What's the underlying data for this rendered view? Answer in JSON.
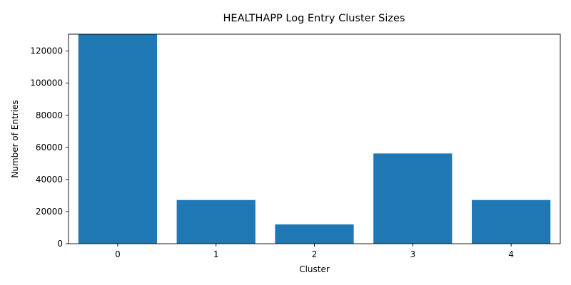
{
  "chart_data": {
    "type": "bar",
    "title": "HEALTHAPP Log Entry Cluster Sizes",
    "xlabel": "Cluster",
    "ylabel": "Number of Entries",
    "categories": [
      "0",
      "1",
      "2",
      "3",
      "4"
    ],
    "values": [
      130500,
      27200,
      12000,
      56200,
      27200
    ],
    "ylim": [
      0,
      130500
    ],
    "yticks": [
      0,
      20000,
      40000,
      60000,
      80000,
      100000,
      120000
    ],
    "ytick_labels": [
      "0",
      "20000",
      "40000",
      "60000",
      "80000",
      "100000",
      "120000"
    ],
    "bar_color": "#1f77b4",
    "grid": false,
    "legend": "none"
  }
}
